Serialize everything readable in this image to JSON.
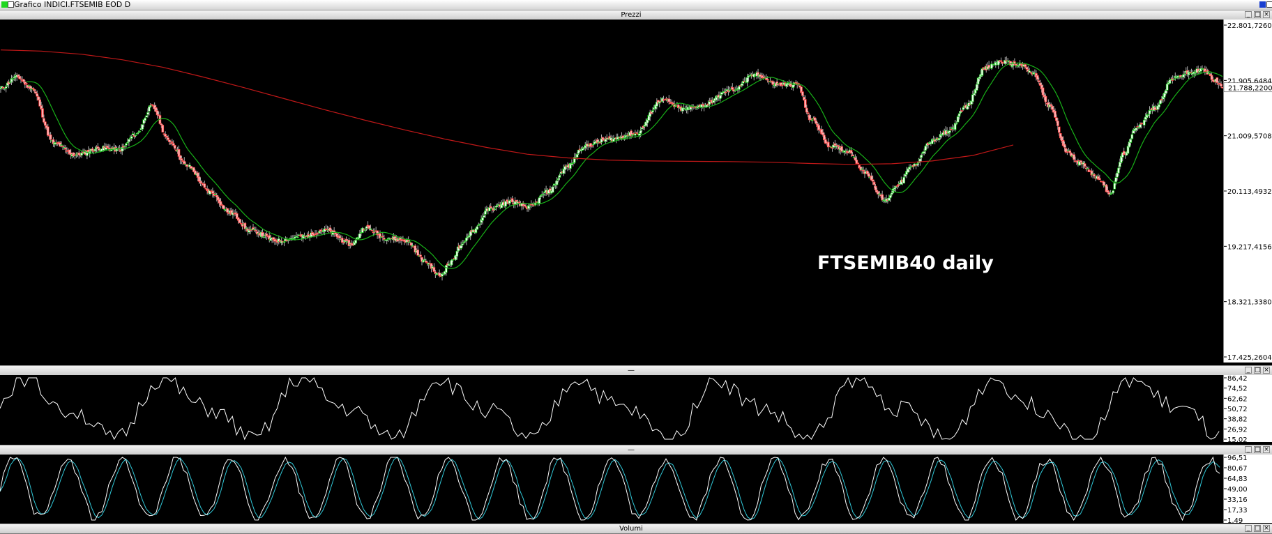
{
  "window": {
    "title": "Grafico INDICI.FTSEMIB EOD D"
  },
  "panes": {
    "price_label": "Prezzi",
    "rsi_label": "—",
    "stoch_label": "—",
    "volume_label": "Volumi"
  },
  "annotation": "FTSEMIB40 daily",
  "colors": {
    "up": "#00c000",
    "down": "#ff3030",
    "sma_fast": "#18b018",
    "sma_slow": "#c01818",
    "rsi": "#ffffff",
    "stoch_k": "#ffffff",
    "stoch_d": "#30c8d8"
  },
  "chart_data": [
    {
      "type": "candlestick",
      "ylim": [
        17425.2604,
        22801.726
      ],
      "ticks": [
        "22.801,7260",
        "21.905,6484",
        "21.009,5708",
        "20.113,4932",
        "19.217,4156",
        "18.321,3380",
        "17.425,2604"
      ],
      "tick_values": [
        22801.726,
        21905.6484,
        21009.5708,
        20113.4932,
        19217.4156,
        18321.338,
        17425.2604
      ],
      "last_price_label": "21.788,2200",
      "last_price": 21788.22,
      "ma_fast_period": 20,
      "slow_ma": [
        [
          0,
          22400
        ],
        [
          30,
          22380
        ],
        [
          60,
          22330
        ],
        [
          90,
          22240
        ],
        [
          120,
          22120
        ],
        [
          150,
          21960
        ],
        [
          180,
          21790
        ],
        [
          210,
          21610
        ],
        [
          240,
          21430
        ],
        [
          270,
          21260
        ],
        [
          300,
          21100
        ],
        [
          330,
          20950
        ],
        [
          360,
          20820
        ],
        [
          390,
          20710
        ],
        [
          420,
          20650
        ],
        [
          450,
          20615
        ],
        [
          480,
          20600
        ],
        [
          510,
          20595
        ],
        [
          540,
          20590
        ],
        [
          570,
          20580
        ],
        [
          600,
          20560
        ],
        [
          630,
          20545
        ],
        [
          660,
          20555
        ],
        [
          690,
          20600
        ],
        [
          720,
          20690
        ],
        [
          750,
          20860
        ]
      ],
      "anchors": [
        [
          0,
          21780
        ],
        [
          12,
          21960
        ],
        [
          22,
          21800
        ],
        [
          40,
          20880
        ],
        [
          55,
          20700
        ],
        [
          75,
          20810
        ],
        [
          88,
          20780
        ],
        [
          100,
          21030
        ],
        [
          112,
          21480
        ],
        [
          125,
          20920
        ],
        [
          138,
          20520
        ],
        [
          155,
          20100
        ],
        [
          170,
          19760
        ],
        [
          185,
          19470
        ],
        [
          205,
          19310
        ],
        [
          225,
          19380
        ],
        [
          240,
          19480
        ],
        [
          260,
          19250
        ],
        [
          270,
          19520
        ],
        [
          285,
          19360
        ],
        [
          300,
          19310
        ],
        [
          315,
          18970
        ],
        [
          325,
          18740
        ],
        [
          333,
          18950
        ],
        [
          340,
          19200
        ],
        [
          350,
          19480
        ],
        [
          362,
          19820
        ],
        [
          377,
          19940
        ],
        [
          392,
          19850
        ],
        [
          405,
          20100
        ],
        [
          420,
          20510
        ],
        [
          432,
          20840
        ],
        [
          450,
          20950
        ],
        [
          470,
          21040
        ],
        [
          490,
          21590
        ],
        [
          505,
          21440
        ],
        [
          520,
          21500
        ],
        [
          540,
          21740
        ],
        [
          560,
          22000
        ],
        [
          575,
          21840
        ],
        [
          590,
          21840
        ],
        [
          600,
          21280
        ],
        [
          615,
          20840
        ],
        [
          628,
          20760
        ],
        [
          640,
          20420
        ],
        [
          655,
          19960
        ],
        [
          665,
          20230
        ],
        [
          675,
          20510
        ],
        [
          690,
          20920
        ],
        [
          702,
          21080
        ],
        [
          716,
          21500
        ],
        [
          728,
          22080
        ],
        [
          740,
          22210
        ],
        [
          755,
          22160
        ],
        [
          765,
          22010
        ],
        [
          777,
          21480
        ],
        [
          790,
          20750
        ],
        [
          800,
          20560
        ],
        [
          812,
          20340
        ],
        [
          822,
          20080
        ],
        [
          832,
          20720
        ],
        [
          842,
          21170
        ],
        [
          855,
          21460
        ],
        [
          868,
          21930
        ],
        [
          880,
          22030
        ],
        [
          890,
          22080
        ],
        [
          900,
          21900
        ],
        [
          905,
          21790
        ]
      ]
    },
    {
      "type": "line",
      "ylim": [
        15.02,
        86.42
      ],
      "ticks": [
        "86,42",
        "74,52",
        "62,62",
        "50,72",
        "38,82",
        "26,92",
        "15,02"
      ],
      "tick_values": [
        86.42,
        74.52,
        62.62,
        50.72,
        38.82,
        26.92,
        15.02
      ]
    },
    {
      "type": "line",
      "ylim": [
        1.49,
        96.51
      ],
      "ticks": [
        "96,51",
        "80,67",
        "64,83",
        "49,00",
        "33,16",
        "17,33",
        "1,49"
      ],
      "tick_values": [
        96.51,
        80.67,
        64.83,
        49.0,
        33.16,
        17.33,
        1.49
      ]
    }
  ]
}
